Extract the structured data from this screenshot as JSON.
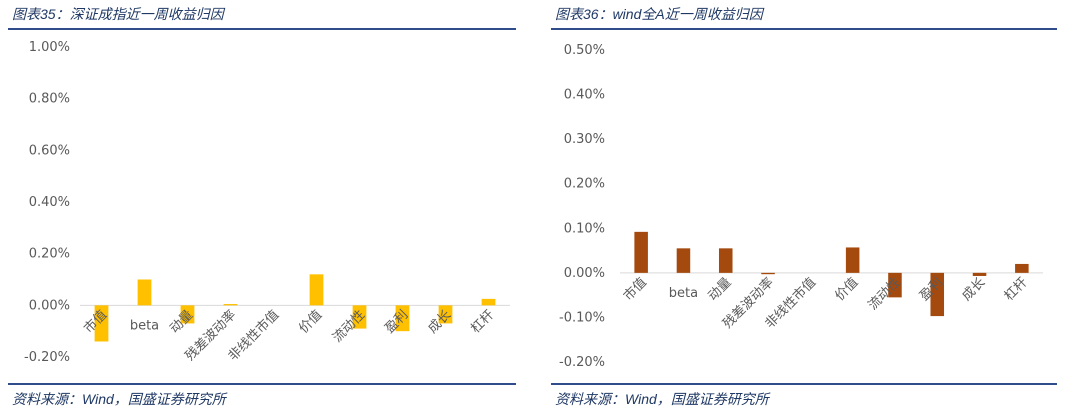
{
  "left": {
    "title": "图表35：深证成指近一周收益归因",
    "source": "资料来源：Wind，国盛证券研究所",
    "chart_data": {
      "type": "bar",
      "categories": [
        "市值",
        "beta",
        "动量",
        "残差波动率",
        "非线性市值",
        "价值",
        "流动性",
        "盈利",
        "成长",
        "杠杆"
      ],
      "values": [
        -0.14,
        0.1,
        -0.07,
        0.005,
        0.0,
        0.12,
        -0.09,
        -0.1,
        -0.07,
        0.025
      ],
      "y_ticks": [
        "1.00%",
        "0.80%",
        "0.60%",
        "0.40%",
        "0.20%",
        "0.00%",
        "-0.20%"
      ],
      "ylim": [
        -0.2,
        1.0
      ],
      "ylabel": "",
      "xlabel": "",
      "color": "#FFC000",
      "grid": false
    }
  },
  "right": {
    "title": "图表36：wind全A近一周收益归因",
    "source": "资料来源：Wind，国盛证券研究所",
    "chart_data": {
      "type": "bar",
      "categories": [
        "市值",
        "beta",
        "动量",
        "残差波动率",
        "非线性市值",
        "价值",
        "流动性",
        "盈利",
        "成长",
        "杠杆"
      ],
      "values": [
        0.092,
        0.055,
        0.055,
        -0.003,
        0.0,
        0.057,
        -0.055,
        -0.097,
        -0.007,
        0.02
      ],
      "y_ticks": [
        "0.50%",
        "0.40%",
        "0.30%",
        "0.20%",
        "0.10%",
        "0.00%",
        "-0.10%",
        "-0.20%"
      ],
      "ylim": [
        -0.2,
        0.5
      ],
      "ylabel": "",
      "xlabel": "",
      "color": "#A54A0E",
      "grid": false
    }
  }
}
